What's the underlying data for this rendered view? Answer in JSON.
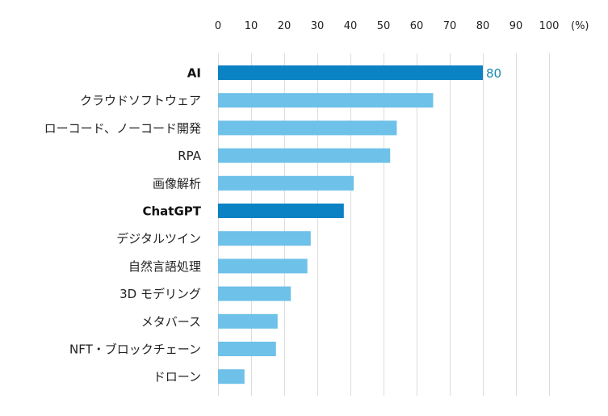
{
  "chart_data": {
    "type": "bar",
    "orientation": "horizontal",
    "title": "",
    "xlabel": "",
    "ylabel": "",
    "x_unit": "(%)",
    "xlim": [
      0,
      100
    ],
    "x_ticks": [
      0,
      10,
      20,
      30,
      40,
      50,
      60,
      70,
      80,
      90,
      100
    ],
    "grid": true,
    "legend": "none",
    "categories": [
      "AI",
      "クラウドソフトウェア",
      "ローコード、ノーコード開発",
      "RPA",
      "画像解析",
      "ChatGPT",
      "デジタルツイン",
      "自然言語処理",
      "3D モデリング",
      "メタバース",
      "NFT・ブロックチェーン",
      "ドローン"
    ],
    "values": [
      80,
      65,
      54,
      52,
      41,
      38,
      28,
      27,
      22,
      18,
      17.5,
      8
    ],
    "highlighted": [
      "AI",
      "ChatGPT"
    ],
    "data_labels": [
      {
        "category": "AI",
        "text": "80"
      }
    ],
    "colors": {
      "highlight": "#0b82c4",
      "normal": "#6ec1e8",
      "data_label": "#1a8ab4",
      "grid": "#dcdcdc"
    }
  }
}
